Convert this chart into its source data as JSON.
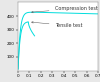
{
  "title": "",
  "xlabel": "",
  "ylabel": "",
  "xlim": [
    0,
    0.7
  ],
  "ylim": [
    0,
    500
  ],
  "yticks": [
    100,
    200,
    300,
    400
  ],
  "xticks": [
    0,
    0.1,
    0.2,
    0.3,
    0.4,
    0.5,
    0.6,
    0.7
  ],
  "curve_color": "#00dddd",
  "background_color": "#e8e8e8",
  "axes_bg": "#ffffff",
  "compression_label": "Compression test",
  "tensile_label": "Tensile test",
  "label_color": "#333333",
  "label_fontsize": 3.5,
  "tick_fontsize": 3.0
}
